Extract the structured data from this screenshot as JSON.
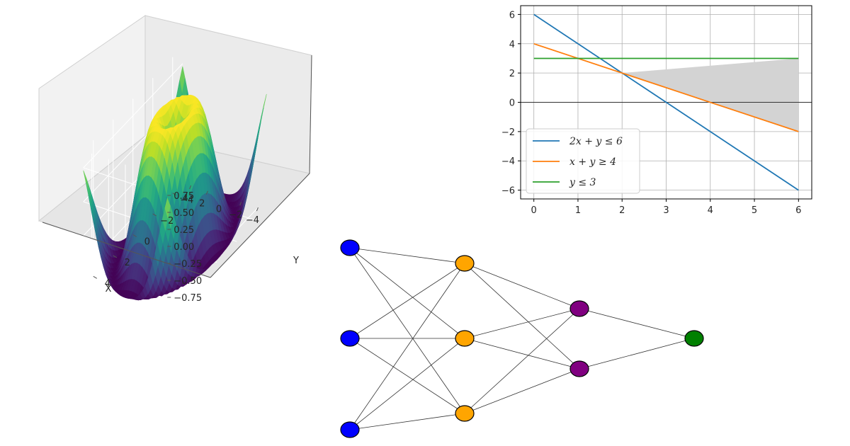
{
  "chart_data": [
    {
      "type": "surface3d",
      "title": "",
      "xlabel": "X",
      "ylabel": "Y",
      "zlabel": "",
      "colormap": "viridis",
      "x_range": [
        -5,
        5
      ],
      "y_range": [
        -5,
        5
      ],
      "z_range": [
        -1,
        1
      ],
      "x_ticks": [
        "−4",
        "−2",
        "0",
        "2",
        "4"
      ],
      "y_ticks": [
        "−4",
        "−2",
        "0",
        "2",
        "4"
      ],
      "z_ticks": [
        "0.75",
        "0.50",
        "0.25",
        "0.00",
        "−0.25",
        "−0.50",
        "−0.75"
      ],
      "function": "sin(sqrt(x^2 + y^2))"
    },
    {
      "type": "line",
      "title": "",
      "xlabel": "",
      "ylabel": "",
      "xlim": [
        -0.3,
        6.3
      ],
      "ylim": [
        -6.6,
        6.6
      ],
      "x_ticks": [
        0,
        1,
        2,
        3,
        4,
        5,
        6
      ],
      "y_ticks": [
        6,
        4,
        2,
        0,
        -2,
        -4,
        -6
      ],
      "x_tick_labels": [
        "0",
        "1",
        "2",
        "3",
        "4",
        "5",
        "6"
      ],
      "y_tick_labels": [
        "6",
        "4",
        "2",
        "0",
        "−2",
        "−4",
        "−6"
      ],
      "grid": true,
      "legend_position": "lower-left",
      "series": [
        {
          "name": "2x + y ≤ 6",
          "color": "#1f77b4",
          "x": [
            0,
            6
          ],
          "y": [
            6,
            -6
          ]
        },
        {
          "name": "x + y ≥ 4",
          "color": "#ff7f0e",
          "x": [
            0,
            6
          ],
          "y": [
            4,
            -2
          ]
        },
        {
          "name": "y ≤ 3",
          "color": "#2ca02c",
          "x": [
            0,
            6
          ],
          "y": [
            3,
            3
          ]
        }
      ],
      "shaded_region": {
        "color": "#d3d3d3",
        "x": [
          2,
          6
        ],
        "y_upper": [
          2,
          3
        ],
        "polygon": [
          [
            2,
            2
          ],
          [
            6,
            3
          ],
          [
            6,
            -2
          ]
        ]
      },
      "reference_line_y": 0
    },
    {
      "type": "network",
      "title": "",
      "layers": [
        {
          "color": "#0000ff",
          "count": 3
        },
        {
          "color": "#ffa500",
          "count": 3
        },
        {
          "color": "#800080",
          "count": 2
        },
        {
          "color": "#008000",
          "count": 1
        }
      ],
      "edges": [
        [
          0,
          0,
          1,
          0
        ],
        [
          0,
          0,
          1,
          1
        ],
        [
          0,
          0,
          1,
          2
        ],
        [
          0,
          1,
          1,
          0
        ],
        [
          0,
          1,
          1,
          1
        ],
        [
          0,
          1,
          1,
          2
        ],
        [
          0,
          2,
          1,
          0
        ],
        [
          0,
          2,
          1,
          1
        ],
        [
          0,
          2,
          1,
          2
        ],
        [
          1,
          0,
          2,
          0
        ],
        [
          1,
          0,
          2,
          1
        ],
        [
          1,
          1,
          2,
          0
        ],
        [
          1,
          1,
          2,
          1
        ],
        [
          1,
          2,
          2,
          0
        ],
        [
          1,
          2,
          2,
          1
        ],
        [
          2,
          0,
          3,
          0
        ],
        [
          2,
          1,
          3,
          0
        ]
      ]
    }
  ]
}
